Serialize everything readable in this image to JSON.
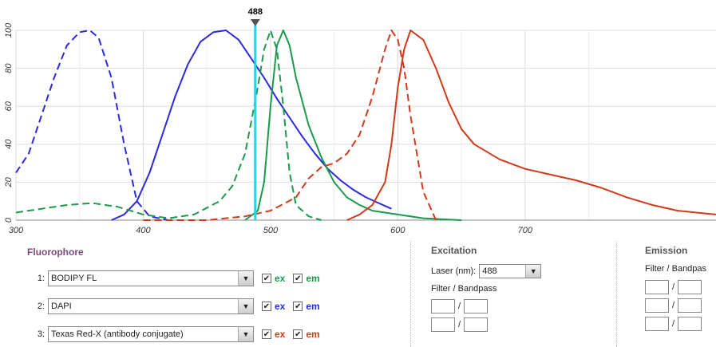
{
  "chart_data": {
    "type": "line",
    "x_ticks": [
      "300",
      "400",
      "500",
      "600",
      "700"
    ],
    "y_ticks": [
      "0",
      "20",
      "40",
      "60",
      "80",
      "100"
    ],
    "xlim": [
      300,
      850
    ],
    "ylim": [
      0,
      100
    ],
    "grid": true,
    "laser_line": {
      "x": 488,
      "label": "488",
      "color": "#22d3ee"
    },
    "series": [
      {
        "color": "#2a2ae0",
        "style": "dashed",
        "x": [
          300,
          310,
          320,
          330,
          340,
          350,
          358,
          365,
          375,
          385,
          395,
          405,
          420
        ],
        "y": [
          25,
          35,
          55,
          75,
          92,
          99,
          100,
          96,
          75,
          40,
          10,
          2,
          0
        ]
      },
      {
        "color": "#2a2ae0",
        "style": "solid",
        "x": [
          375,
          385,
          395,
          405,
          415,
          425,
          435,
          445,
          455,
          465,
          475,
          485,
          495,
          505,
          515,
          525,
          535,
          545,
          555,
          565,
          575,
          585,
          595
        ],
        "y": [
          0,
          3,
          10,
          25,
          45,
          65,
          82,
          94,
          99,
          100,
          95,
          85,
          75,
          64,
          54,
          44,
          35,
          27,
          21,
          16,
          12,
          9,
          6
        ]
      },
      {
        "color": "#1a9a4a",
        "style": "dashed",
        "x": [
          300,
          320,
          340,
          360,
          380,
          400,
          420,
          440,
          460,
          470,
          480,
          490,
          495,
          500,
          505,
          510,
          515,
          520,
          530,
          540
        ],
        "y": [
          4,
          6,
          8,
          9,
          7,
          3,
          1,
          3,
          10,
          18,
          35,
          70,
          90,
          100,
          90,
          60,
          25,
          8,
          2,
          0
        ]
      },
      {
        "color": "#1a9a4a",
        "style": "solid",
        "x": [
          480,
          490,
          495,
          500,
          505,
          510,
          515,
          520,
          530,
          540,
          550,
          560,
          570,
          580,
          600,
          620,
          650
        ],
        "y": [
          0,
          5,
          20,
          60,
          92,
          100,
          92,
          75,
          50,
          33,
          20,
          12,
          8,
          5,
          3,
          1,
          0
        ]
      },
      {
        "color": "#d03a1a",
        "style": "dashed",
        "x": [
          400,
          450,
          480,
          500,
          520,
          530,
          540,
          550,
          560,
          570,
          580,
          590,
          595,
          600,
          605,
          610,
          620,
          630
        ],
        "y": [
          0,
          0,
          2,
          5,
          12,
          22,
          28,
          30,
          35,
          45,
          65,
          90,
          100,
          95,
          80,
          55,
          15,
          0
        ]
      },
      {
        "color": "#d03a1a",
        "style": "solid",
        "x": [
          560,
          570,
          580,
          590,
          595,
          600,
          605,
          610,
          620,
          630,
          640,
          650,
          660,
          670,
          680,
          700,
          720,
          740,
          760,
          780,
          800,
          820,
          850
        ],
        "y": [
          0,
          3,
          8,
          20,
          40,
          70,
          90,
          100,
          95,
          80,
          62,
          48,
          40,
          36,
          32,
          27,
          24,
          21,
          17,
          12,
          8,
          5,
          3
        ]
      }
    ]
  },
  "fluorophore": {
    "title": "Fluorophore",
    "rows": [
      {
        "index": "1:",
        "name": "BODIPY FL",
        "ex_label": "ex",
        "em_label": "em",
        "ex_color": "#1a9a4a",
        "em_color": "#1a9a4a"
      },
      {
        "index": "2:",
        "name": "DAPI",
        "ex_label": "ex",
        "em_label": "em",
        "ex_color": "#2a2ae0",
        "em_color": "#2a2ae0"
      },
      {
        "index": "3:",
        "name": "Texas Red-X (antibody conjugate)",
        "ex_label": "ex",
        "em_label": "em",
        "ex_color": "#d03a1a",
        "em_color": "#d03a1a"
      }
    ]
  },
  "excitation": {
    "title": "Excitation",
    "laser_label": "Laser (nm):",
    "laser_value": "488",
    "filter_label": "Filter / Bandpass",
    "slash": "/"
  },
  "emission": {
    "title": "Emission",
    "filter_label": "Filter / Bandpas",
    "slash": "/"
  },
  "icons": {
    "dropdown": "chevron-down-icon",
    "check": "checkmark-icon",
    "laser_marker": "triangle-down-icon"
  }
}
